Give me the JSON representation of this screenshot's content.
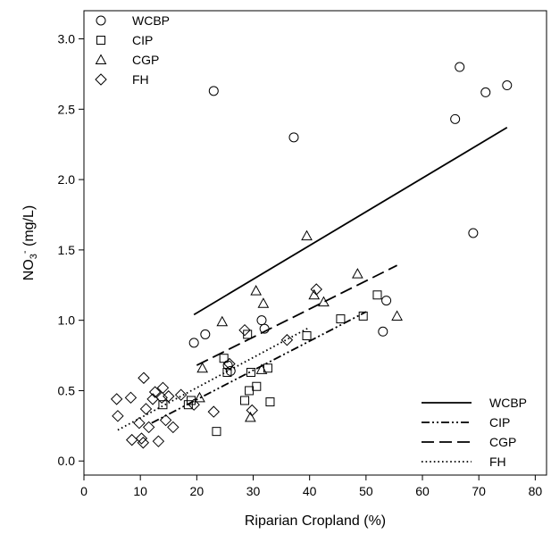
{
  "chart_data": {
    "type": "scatter",
    "xlabel": "Riparian Cropland (%)",
    "ylabel_main": "NO",
    "ylabel_sub": "3",
    "ylabel_sup": "-",
    "ylabel_unit": " (mg/L)",
    "xlim": [
      0,
      82
    ],
    "ylim": [
      -0.1,
      3.2
    ],
    "x_ticks": [
      "0",
      "10",
      "20",
      "30",
      "40",
      "50",
      "60",
      "70",
      "80"
    ],
    "y_ticks": [
      "0.0",
      "0.5",
      "1.0",
      "1.5",
      "2.0",
      "2.5",
      "3.0"
    ],
    "x_tick_values": [
      0,
      10,
      20,
      30,
      40,
      50,
      60,
      70,
      80
    ],
    "y_tick_values": [
      0,
      0.5,
      1.0,
      1.5,
      2.0,
      2.5,
      3.0
    ],
    "marker_legend_position": "top-left",
    "line_legend_position": "bottom-right",
    "series": [
      {
        "name": "WCBP",
        "marker": "circle",
        "points": [
          [
            19.5,
            0.84
          ],
          [
            21.5,
            0.9
          ],
          [
            23.0,
            2.63
          ],
          [
            25.5,
            0.68
          ],
          [
            26.0,
            0.64
          ],
          [
            31.5,
            1.0
          ],
          [
            32.0,
            0.94
          ],
          [
            37.2,
            2.3
          ],
          [
            53.0,
            0.92
          ],
          [
            53.6,
            1.14
          ],
          [
            65.8,
            2.43
          ],
          [
            66.6,
            2.8
          ],
          [
            69.0,
            1.62
          ],
          [
            71.2,
            2.62
          ],
          [
            75.0,
            2.67
          ]
        ],
        "line": [
          [
            19.5,
            1.04
          ],
          [
            75.0,
            2.37
          ]
        ],
        "line_style": "solid"
      },
      {
        "name": "CIP",
        "marker": "square",
        "points": [
          [
            14.0,
            0.4
          ],
          [
            18.5,
            0.4
          ],
          [
            19.0,
            0.43
          ],
          [
            23.5,
            0.21
          ],
          [
            24.8,
            0.73
          ],
          [
            25.4,
            0.63
          ],
          [
            28.5,
            0.43
          ],
          [
            29.0,
            0.9
          ],
          [
            29.3,
            0.5
          ],
          [
            29.6,
            0.63
          ],
          [
            30.6,
            0.53
          ],
          [
            32.6,
            0.66
          ],
          [
            33.0,
            0.42
          ],
          [
            39.5,
            0.89
          ],
          [
            45.5,
            1.01
          ],
          [
            49.5,
            1.03
          ],
          [
            52.0,
            1.18
          ]
        ],
        "line": [
          [
            12.0,
            0.27
          ],
          [
            50.0,
            1.06
          ]
        ],
        "line_style": "dash-dot-dot"
      },
      {
        "name": "CGP",
        "marker": "triangle",
        "points": [
          [
            20.5,
            0.45
          ],
          [
            21.0,
            0.66
          ],
          [
            24.5,
            0.99
          ],
          [
            29.5,
            0.31
          ],
          [
            30.5,
            1.21
          ],
          [
            31.5,
            0.65
          ],
          [
            31.8,
            1.12
          ],
          [
            39.5,
            1.6
          ],
          [
            40.8,
            1.18
          ],
          [
            42.5,
            1.13
          ],
          [
            48.5,
            1.33
          ],
          [
            55.5,
            1.03
          ]
        ],
        "line": [
          [
            20.0,
            0.68
          ],
          [
            55.5,
            1.39
          ]
        ],
        "line_style": "dash"
      },
      {
        "name": "FH",
        "marker": "diamond",
        "points": [
          [
            5.8,
            0.44
          ],
          [
            6.0,
            0.32
          ],
          [
            8.3,
            0.45
          ],
          [
            8.5,
            0.15
          ],
          [
            9.8,
            0.27
          ],
          [
            10.2,
            0.16
          ],
          [
            10.5,
            0.13
          ],
          [
            10.6,
            0.59
          ],
          [
            11.0,
            0.37
          ],
          [
            11.5,
            0.24
          ],
          [
            12.2,
            0.44
          ],
          [
            12.6,
            0.49
          ],
          [
            13.2,
            0.14
          ],
          [
            13.8,
            0.45
          ],
          [
            14.0,
            0.52
          ],
          [
            14.5,
            0.29
          ],
          [
            15.0,
            0.46
          ],
          [
            15.8,
            0.24
          ],
          [
            17.2,
            0.47
          ],
          [
            19.5,
            0.4
          ],
          [
            23.0,
            0.35
          ],
          [
            25.8,
            0.69
          ],
          [
            28.5,
            0.93
          ],
          [
            29.8,
            0.36
          ],
          [
            36.0,
            0.86
          ],
          [
            41.2,
            1.22
          ]
        ],
        "line": [
          [
            6.0,
            0.22
          ],
          [
            40.0,
            0.95
          ]
        ],
        "line_style": "dot"
      }
    ]
  }
}
